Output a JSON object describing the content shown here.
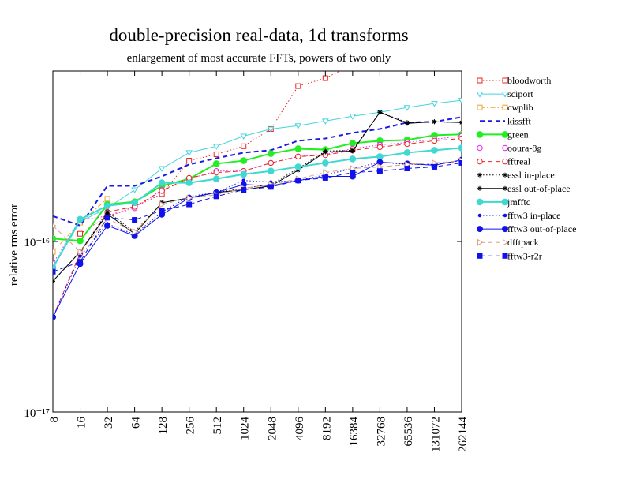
{
  "chart_data": {
    "type": "line",
    "title": "double-precision real-data, 1d transforms",
    "subtitle": "enlargement of most accurate FFTs, powers of two only",
    "y_label": "relative rms error",
    "categories": [
      "8",
      "16",
      "32",
      "64",
      "128",
      "256",
      "512",
      "1024",
      "2048",
      "4096",
      "8192",
      "16384",
      "32768",
      "65536",
      "131072",
      "262144"
    ],
    "yscale": "log",
    "ylim": [
      1e-17,
      1e-15
    ],
    "yticks": [
      {
        "value": 1e-17,
        "label": "10⁻¹⁷"
      },
      {
        "value": 1e-16,
        "label": "10⁻¹⁶"
      }
    ],
    "legend": "outside-right",
    "series": [
      {
        "name": "bloodworth",
        "color": "#ee2222",
        "dash": "dotted",
        "width": 1,
        "marker": "square",
        "filled": false,
        "values": [
          null,
          1.11e-16,
          1.41e-16,
          1.6e-16,
          1.9e-16,
          2.98e-16,
          3.25e-16,
          3.62e-16,
          4.57e-16,
          8.16e-16,
          9.08e-16,
          1.09e-15,
          null,
          null,
          null,
          null
        ]
      },
      {
        "name": "sciport",
        "color": "#44d4dc",
        "dash": "solid",
        "width": 1,
        "marker": "triangle-down",
        "filled": false,
        "values": [
          7e-17,
          1.31e-16,
          1.57e-16,
          2.01e-16,
          2.68e-16,
          3.32e-16,
          3.62e-16,
          4.15e-16,
          4.57e-16,
          4.78e-16,
          5.09e-16,
          5.43e-16,
          5.73e-16,
          6.11e-16,
          6.45e-16,
          6.73e-16
        ]
      },
      {
        "name": "cwplib",
        "color": "#f0a020",
        "dash": "dashdot",
        "width": 1,
        "marker": "square",
        "filled": false,
        "values": [
          8.7e-17,
          1.29e-16,
          1.78e-16,
          null,
          null,
          null,
          null,
          null,
          null,
          null,
          null,
          null,
          null,
          null,
          null,
          null
        ]
      },
      {
        "name": "kissfft",
        "color": "#1a1ae6",
        "dash": "dashed",
        "width": 2,
        "marker": "none",
        "filled": false,
        "values": [
          1.41e-16,
          1.24e-16,
          2.12e-16,
          2.12e-16,
          2.41e-16,
          2.83e-16,
          3.08e-16,
          3.32e-16,
          3.43e-16,
          3.9e-16,
          4.02e-16,
          4.34e-16,
          4.57e-16,
          4.99e-16,
          5.04e-16,
          5.37e-16
        ]
      },
      {
        "name": "green",
        "color": "#22ee22",
        "dash": "solid",
        "width": 2,
        "marker": "dot",
        "filled": true,
        "values": [
          1.04e-16,
          1.01e-16,
          1.65e-16,
          1.71e-16,
          2.12e-16,
          2.33e-16,
          2.86e-16,
          2.98e-16,
          3.28e-16,
          3.5e-16,
          3.46e-16,
          3.77e-16,
          3.9e-16,
          3.94e-16,
          4.2e-16,
          4.25e-16
        ]
      },
      {
        "name": "ooura-8g",
        "color": "#ee22ee",
        "dash": "dotted",
        "width": 1,
        "marker": "circle",
        "filled": false,
        "values": [
          7.4e-17,
          1.34e-16,
          1.41e-16,
          1.57e-16,
          2.01e-16,
          2.33e-16,
          2.59e-16,
          2.59e-16,
          2.89e-16,
          3.15e-16,
          3.25e-16,
          3.5e-16,
          3.69e-16,
          3.81e-16,
          3.98e-16,
          4.15e-16
        ]
      },
      {
        "name": "fftreal",
        "color": "#ee2222",
        "dash": "dashed",
        "width": 1,
        "marker": "circle",
        "filled": false,
        "values": [
          3.6e-17,
          8.5e-17,
          1.49e-16,
          1.6e-16,
          1.98e-16,
          2.36e-16,
          2.54e-16,
          2.59e-16,
          2.89e-16,
          3.15e-16,
          3.21e-16,
          3.43e-16,
          3.58e-16,
          3.73e-16,
          3.9e-16,
          4.02e-16
        ]
      },
      {
        "name": "essl in-place",
        "color": "#000000",
        "dash": "dotted",
        "width": 1,
        "marker": "star",
        "filled": true,
        "values": [
          5.85e-17,
          8.7e-17,
          1.49e-16,
          1.14e-16,
          1.69e-16,
          1.8e-16,
          1.94e-16,
          2.05e-16,
          2.16e-16,
          2.68e-16,
          3.39e-16,
          3.43e-16,
          5.73e-16,
          4.99e-16,
          5.04e-16,
          4.99e-16
        ]
      },
      {
        "name": "essl out-of-place",
        "color": "#000000",
        "dash": "solid",
        "width": 1,
        "marker": "star",
        "filled": true,
        "values": [
          5.85e-17,
          8.7e-17,
          1.45e-16,
          1.11e-16,
          1.69e-16,
          1.8e-16,
          1.94e-16,
          2.01e-16,
          2.12e-16,
          2.62e-16,
          3.35e-16,
          3.39e-16,
          5.73e-16,
          4.93e-16,
          5.04e-16,
          4.99e-16
        ]
      },
      {
        "name": "jmfftc",
        "color": "#40d8d0",
        "dash": "solid",
        "width": 2,
        "marker": "dot",
        "filled": true,
        "values": [
          7e-17,
          1.35e-16,
          1.62e-16,
          1.69e-16,
          2.21e-16,
          2.21e-16,
          2.33e-16,
          2.48e-16,
          2.59e-16,
          2.74e-16,
          2.89e-16,
          3.05e-16,
          3.15e-16,
          3.32e-16,
          3.43e-16,
          3.54e-16
        ]
      },
      {
        "name": "fftw3 in-place",
        "color": "#1111ee",
        "dash": "dotted",
        "width": 1,
        "marker": "small-dot",
        "filled": true,
        "values": [
          3.6e-17,
          8.2e-17,
          1.27e-16,
          1.1e-16,
          1.49e-16,
          1.84e-16,
          1.94e-16,
          2.28e-16,
          2.23e-16,
          2.28e-16,
          2.46e-16,
          2.68e-16,
          2.92e-16,
          2.83e-16,
          2.83e-16,
          2.98e-16
        ]
      },
      {
        "name": "fftw3 out-of-place",
        "color": "#1111ee",
        "dash": "solid",
        "width": 1,
        "marker": "dot",
        "filled": true,
        "values": [
          3.6e-17,
          7.4e-17,
          1.24e-16,
          1.08e-16,
          1.44e-16,
          1.8e-16,
          1.94e-16,
          2.16e-16,
          2.12e-16,
          2.28e-16,
          2.41e-16,
          2.41e-16,
          2.92e-16,
          2.86e-16,
          2.8e-16,
          3.01e-16
        ]
      },
      {
        "name": "dfftpack",
        "color": "#d8a08a",
        "dash": "dashed",
        "width": 1,
        "marker": "triangle-right",
        "filled": false,
        "values": [
          1.24e-16,
          8.7e-17,
          1.36e-16,
          1.14e-16,
          1.65e-16,
          1.8e-16,
          1.88e-16,
          2.05e-16,
          2.16e-16,
          2.33e-16,
          2.54e-16,
          2.68e-16,
          2.74e-16,
          2.83e-16,
          2.89e-16,
          2.98e-16
        ]
      },
      {
        "name": "fftw3-r2r",
        "color": "#1111ee",
        "dash": "dashed",
        "width": 1,
        "marker": "square",
        "filled": true,
        "values": [
          6.65e-17,
          7.6e-17,
          1.38e-16,
          1.34e-16,
          1.52e-16,
          1.65e-16,
          1.84e-16,
          2.01e-16,
          2.09e-16,
          2.28e-16,
          2.36e-16,
          2.54e-16,
          2.59e-16,
          2.68e-16,
          2.74e-16,
          2.89e-16
        ]
      }
    ]
  }
}
